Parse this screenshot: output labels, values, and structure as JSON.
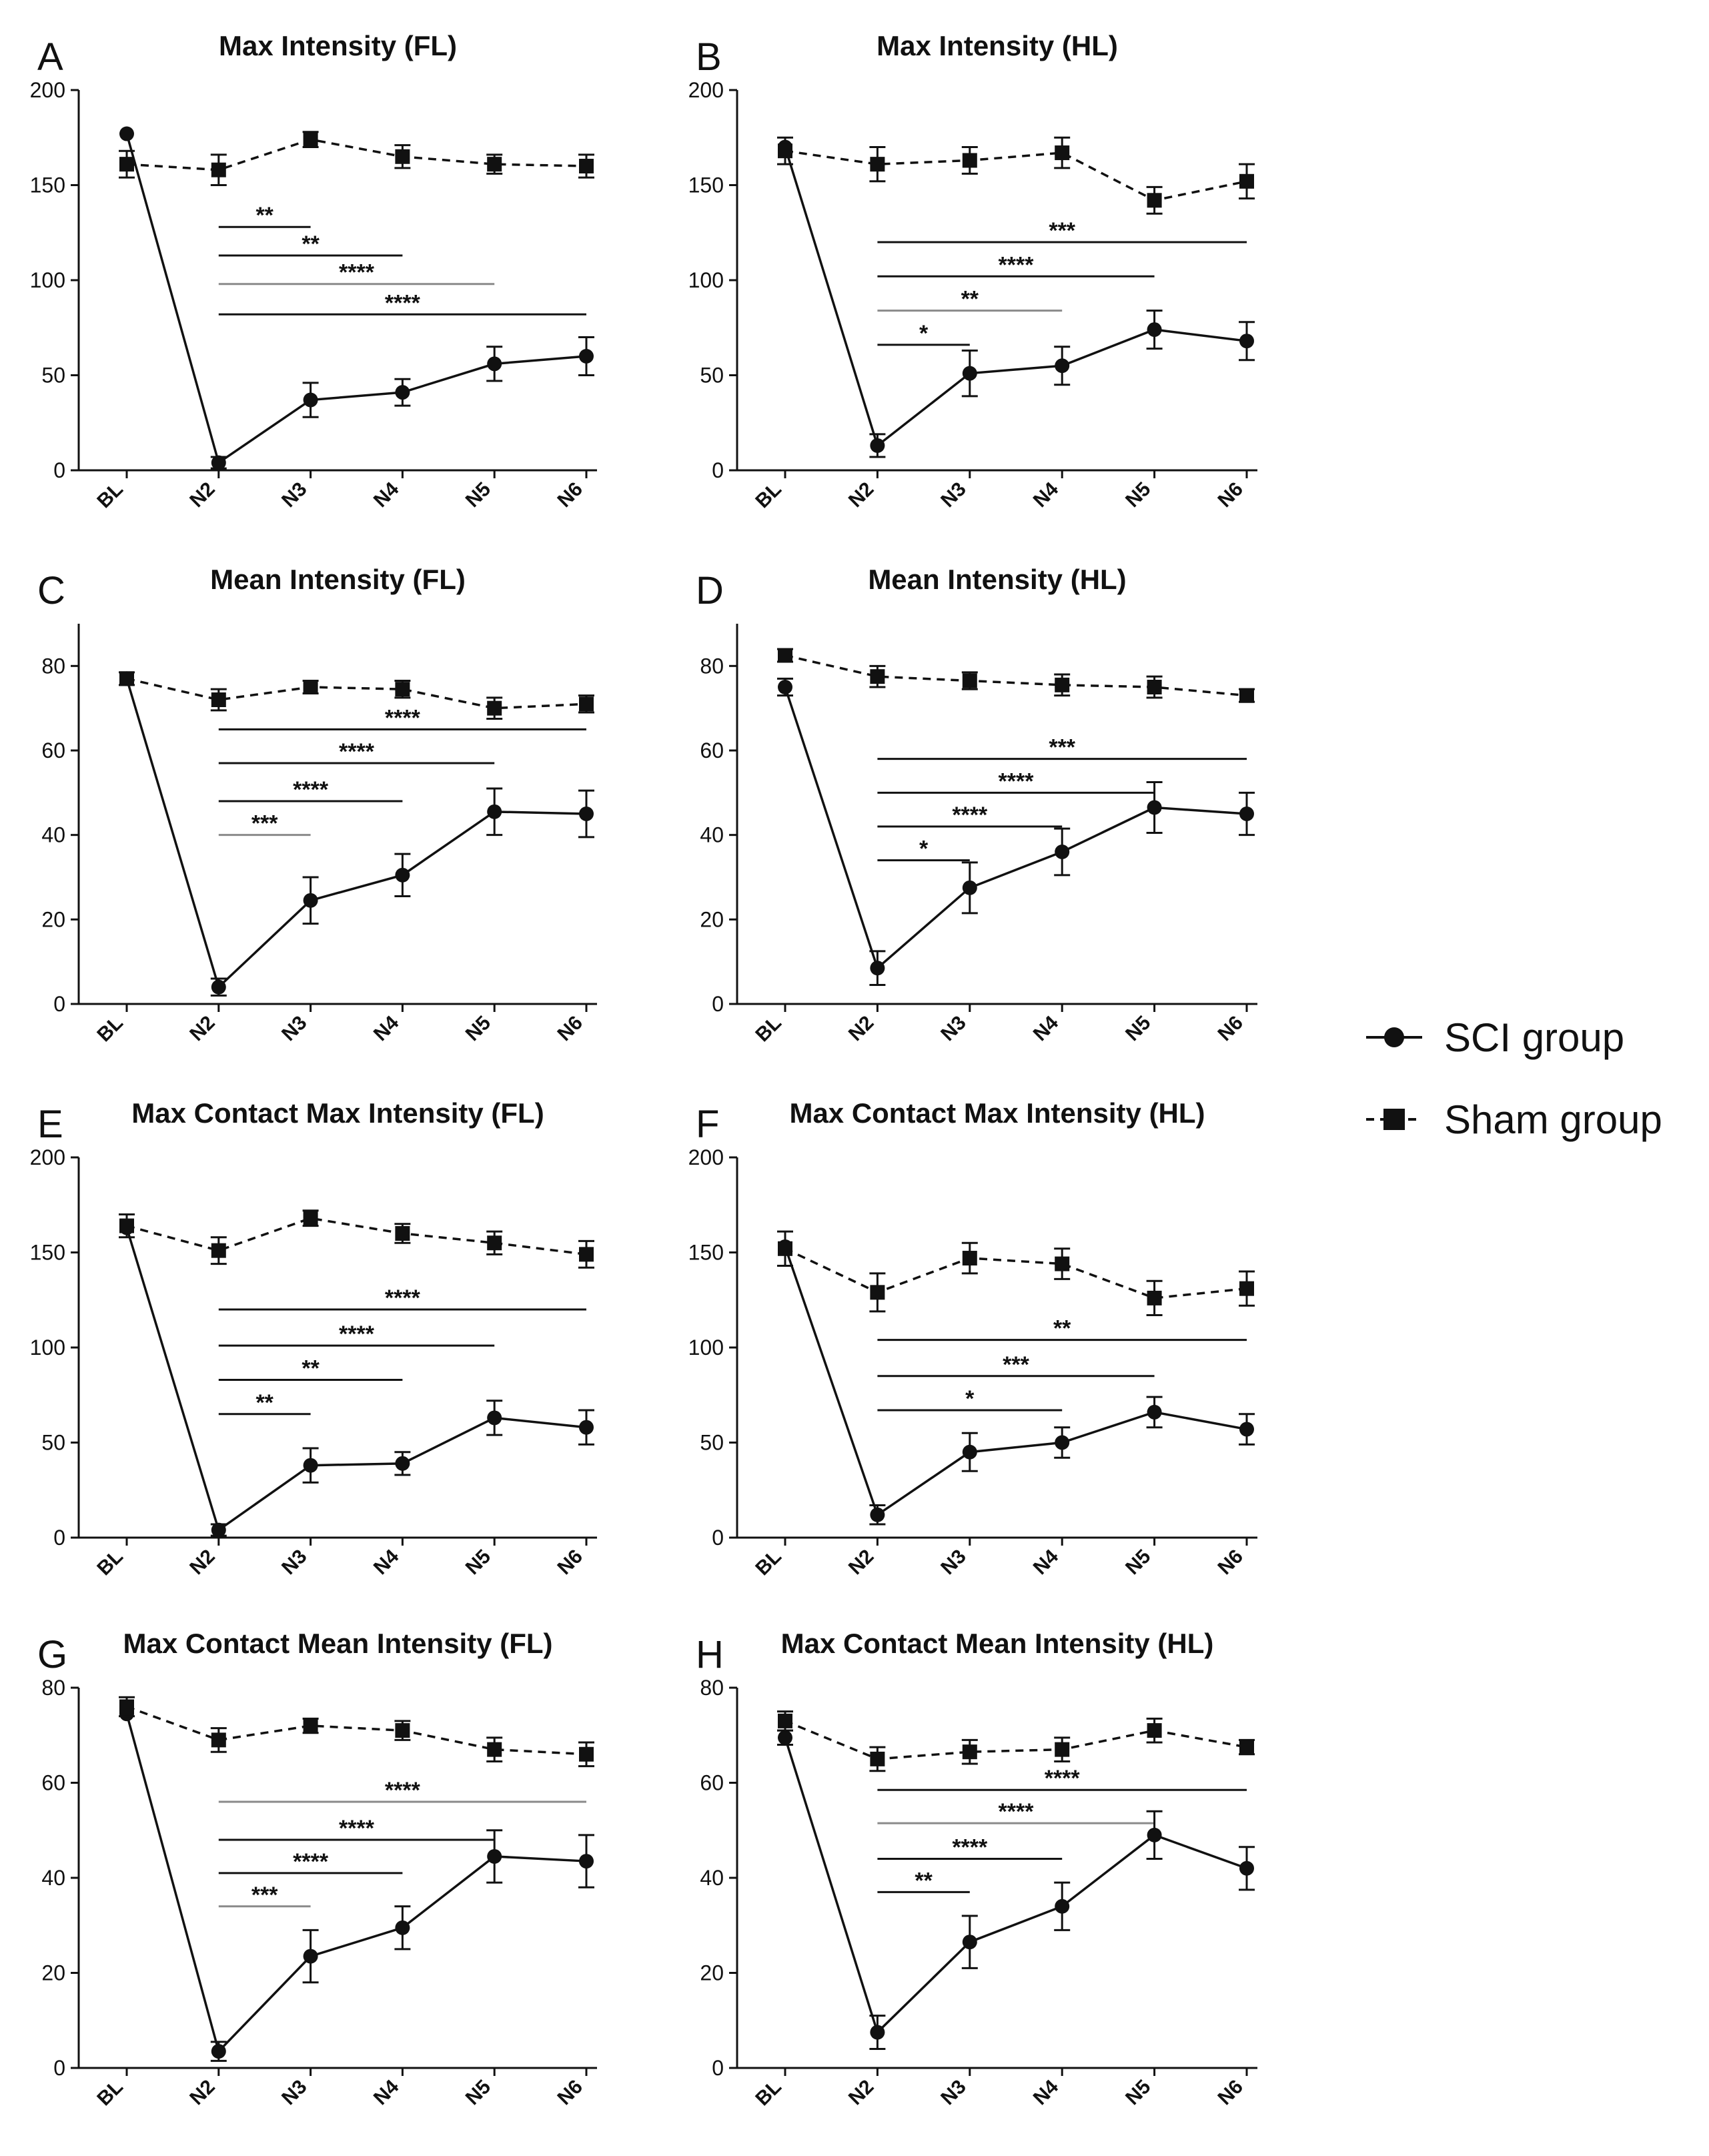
{
  "legend": {
    "sci_label": "SCI group",
    "sham_label": "Sham group"
  },
  "colors": {
    "ink": "#111111",
    "gray_bracket": "#8a8a8a"
  },
  "chart_data": [
    {
      "id": "A",
      "panel_label": "A",
      "type": "line",
      "title": "Max Intensity (FL)",
      "categories": [
        "BL",
        "N2",
        "N3",
        "N4",
        "N5",
        "N6"
      ],
      "ylim": [
        0,
        200
      ],
      "yticks": [
        0,
        50,
        100,
        150,
        200
      ],
      "series": [
        {
          "name": "SCI group",
          "style": "solid",
          "marker": "circle",
          "values": [
            177,
            4,
            37,
            41,
            56,
            60
          ],
          "err": [
            0,
            3,
            9,
            7,
            9,
            10
          ]
        },
        {
          "name": "Sham group",
          "style": "dashed",
          "marker": "square",
          "values": [
            161,
            158,
            174,
            165,
            161,
            160
          ],
          "err": [
            7,
            8,
            4,
            6,
            5,
            6
          ]
        }
      ],
      "comparisons": [
        {
          "from": "N2",
          "to": "N3",
          "y": 128,
          "label": "**",
          "color": "dark"
        },
        {
          "from": "N2",
          "to": "N4",
          "y": 113,
          "label": "**",
          "color": "dark"
        },
        {
          "from": "N2",
          "to": "N5",
          "y": 98,
          "label": "****",
          "color": "gray"
        },
        {
          "from": "N2",
          "to": "N6",
          "y": 82,
          "label": "****",
          "color": "dark"
        }
      ]
    },
    {
      "id": "B",
      "panel_label": "B",
      "type": "line",
      "title": "Max Intensity (HL)",
      "categories": [
        "BL",
        "N2",
        "N3",
        "N4",
        "N5",
        "N6"
      ],
      "ylim": [
        0,
        200
      ],
      "yticks": [
        0,
        50,
        100,
        150,
        200
      ],
      "series": [
        {
          "name": "SCI group",
          "style": "solid",
          "marker": "circle",
          "values": [
            170,
            13,
            51,
            55,
            74,
            68
          ],
          "err": [
            0,
            6,
            12,
            10,
            10,
            10
          ]
        },
        {
          "name": "Sham group",
          "style": "dashed",
          "marker": "square",
          "values": [
            168,
            161,
            163,
            167,
            142,
            152
          ],
          "err": [
            7,
            9,
            7,
            8,
            7,
            9
          ]
        }
      ],
      "comparisons": [
        {
          "from": "N2",
          "to": "N6",
          "y": 120,
          "label": "***",
          "color": "dark"
        },
        {
          "from": "N2",
          "to": "N5",
          "y": 102,
          "label": "****",
          "color": "dark"
        },
        {
          "from": "N2",
          "to": "N4",
          "y": 84,
          "label": "**",
          "color": "gray"
        },
        {
          "from": "N2",
          "to": "N3",
          "y": 66,
          "label": "*",
          "color": "dark"
        }
      ]
    },
    {
      "id": "C",
      "panel_label": "C",
      "type": "line",
      "title": "Mean Intensity (FL)",
      "categories": [
        "BL",
        "N2",
        "N3",
        "N4",
        "N5",
        "N6"
      ],
      "ylim": [
        0,
        90
      ],
      "yticks": [
        0,
        20,
        40,
        60,
        80
      ],
      "series": [
        {
          "name": "SCI group",
          "style": "solid",
          "marker": "circle",
          "values": [
            77,
            4,
            24.5,
            30.5,
            45.5,
            45
          ],
          "err": [
            0,
            2,
            5.5,
            5,
            5.5,
            5.5
          ]
        },
        {
          "name": "Sham group",
          "style": "dashed",
          "marker": "square",
          "values": [
            77,
            72,
            75,
            74.5,
            70,
            71
          ],
          "err": [
            1.5,
            2.5,
            1.5,
            2,
            2.5,
            2
          ]
        }
      ],
      "comparisons": [
        {
          "from": "N2",
          "to": "N6",
          "y": 65,
          "label": "****",
          "color": "dark"
        },
        {
          "from": "N2",
          "to": "N5",
          "y": 57,
          "label": "****",
          "color": "dark"
        },
        {
          "from": "N2",
          "to": "N4",
          "y": 48,
          "label": "****",
          "color": "dark"
        },
        {
          "from": "N2",
          "to": "N3",
          "y": 40,
          "label": "***",
          "color": "gray"
        }
      ]
    },
    {
      "id": "D",
      "panel_label": "D",
      "type": "line",
      "title": "Mean Intensity (HL)",
      "categories": [
        "BL",
        "N2",
        "N3",
        "N4",
        "N5",
        "N6"
      ],
      "ylim": [
        0,
        90
      ],
      "yticks": [
        0,
        20,
        40,
        60,
        80
      ],
      "series": [
        {
          "name": "SCI group",
          "style": "solid",
          "marker": "circle",
          "values": [
            75,
            8.5,
            27.5,
            36,
            46.5,
            45
          ],
          "err": [
            2,
            4,
            6,
            5.5,
            6,
            5
          ]
        },
        {
          "name": "Sham group",
          "style": "dashed",
          "marker": "square",
          "values": [
            82.5,
            77.5,
            76.5,
            75.5,
            75,
            73
          ],
          "err": [
            1.5,
            2.5,
            2,
            2.5,
            2.5,
            1.5
          ]
        }
      ],
      "comparisons": [
        {
          "from": "N2",
          "to": "N6",
          "y": 58,
          "label": "***",
          "color": "dark"
        },
        {
          "from": "N2",
          "to": "N5",
          "y": 50,
          "label": "****",
          "color": "dark"
        },
        {
          "from": "N2",
          "to": "N4",
          "y": 42,
          "label": "****",
          "color": "dark"
        },
        {
          "from": "N2",
          "to": "N3",
          "y": 34,
          "label": "*",
          "color": "dark"
        }
      ]
    },
    {
      "id": "E",
      "panel_label": "E",
      "type": "line",
      "title": "Max Contact Max Intensity (FL)",
      "categories": [
        "BL",
        "N2",
        "N3",
        "N4",
        "N5",
        "N6"
      ],
      "ylim": [
        0,
        200
      ],
      "yticks": [
        0,
        50,
        100,
        150,
        200
      ],
      "series": [
        {
          "name": "SCI group",
          "style": "solid",
          "marker": "circle",
          "values": [
            163,
            4,
            38,
            39,
            63,
            58
          ],
          "err": [
            0,
            3,
            9,
            6,
            9,
            9
          ]
        },
        {
          "name": "Sham group",
          "style": "dashed",
          "marker": "square",
          "values": [
            164,
            151,
            168,
            160,
            155,
            149
          ],
          "err": [
            6,
            7,
            4,
            5,
            6,
            7
          ]
        }
      ],
      "comparisons": [
        {
          "from": "N2",
          "to": "N6",
          "y": 120,
          "label": "****",
          "color": "dark"
        },
        {
          "from": "N2",
          "to": "N5",
          "y": 101,
          "label": "****",
          "color": "dark"
        },
        {
          "from": "N2",
          "to": "N4",
          "y": 83,
          "label": "**",
          "color": "dark"
        },
        {
          "from": "N2",
          "to": "N3",
          "y": 65,
          "label": "**",
          "color": "dark"
        }
      ]
    },
    {
      "id": "F",
      "panel_label": "F",
      "type": "line",
      "title": "Max Contact Max Intensity (HL)",
      "categories": [
        "BL",
        "N2",
        "N3",
        "N4",
        "N5",
        "N6"
      ],
      "ylim": [
        0,
        200
      ],
      "yticks": [
        0,
        50,
        100,
        150,
        200
      ],
      "series": [
        {
          "name": "SCI group",
          "style": "solid",
          "marker": "circle",
          "values": [
            153,
            12,
            45,
            50,
            66,
            57
          ],
          "err": [
            0,
            5,
            10,
            8,
            8,
            8
          ]
        },
        {
          "name": "Sham group",
          "style": "dashed",
          "marker": "square",
          "values": [
            152,
            129,
            147,
            144,
            126,
            131
          ],
          "err": [
            9,
            10,
            8,
            8,
            9,
            9
          ]
        }
      ],
      "comparisons": [
        {
          "from": "N2",
          "to": "N6",
          "y": 104,
          "label": "**",
          "color": "dark"
        },
        {
          "from": "N2",
          "to": "N5",
          "y": 85,
          "label": "***",
          "color": "dark"
        },
        {
          "from": "N2",
          "to": "N4",
          "y": 67,
          "label": "*",
          "color": "dark"
        }
      ]
    },
    {
      "id": "G",
      "panel_label": "G",
      "type": "line",
      "title": "Max Contact Mean Intensity (FL)",
      "categories": [
        "BL",
        "N2",
        "N3",
        "N4",
        "N5",
        "N6"
      ],
      "ylim": [
        0,
        80
      ],
      "yticks": [
        0,
        20,
        40,
        60,
        80
      ],
      "series": [
        {
          "name": "SCI group",
          "style": "solid",
          "marker": "circle",
          "values": [
            74.5,
            3.5,
            23.5,
            29.5,
            44.5,
            43.5
          ],
          "err": [
            0,
            2,
            5.5,
            4.5,
            5.5,
            5.5
          ]
        },
        {
          "name": "Sham group",
          "style": "dashed",
          "marker": "square",
          "values": [
            76,
            69,
            72,
            71,
            67,
            66
          ],
          "err": [
            2,
            2.5,
            1.5,
            2,
            2.5,
            2.5
          ]
        }
      ],
      "comparisons": [
        {
          "from": "N2",
          "to": "N6",
          "y": 56,
          "label": "****",
          "color": "gray"
        },
        {
          "from": "N2",
          "to": "N5",
          "y": 48,
          "label": "****",
          "color": "dark"
        },
        {
          "from": "N2",
          "to": "N4",
          "y": 41,
          "label": "****",
          "color": "dark"
        },
        {
          "from": "N2",
          "to": "N3",
          "y": 34,
          "label": "***",
          "color": "gray"
        }
      ]
    },
    {
      "id": "H",
      "panel_label": "H",
      "type": "line",
      "title": "Max Contact Mean Intensity (HL)",
      "categories": [
        "BL",
        "N2",
        "N3",
        "N4",
        "N5",
        "N6"
      ],
      "ylim": [
        0,
        80
      ],
      "yticks": [
        0,
        20,
        40,
        60,
        80
      ],
      "series": [
        {
          "name": "SCI group",
          "style": "solid",
          "marker": "circle",
          "values": [
            69.5,
            7.5,
            26.5,
            34,
            49,
            42
          ],
          "err": [
            1.5,
            3.5,
            5.5,
            5,
            5,
            4.5
          ]
        },
        {
          "name": "Sham group",
          "style": "dashed",
          "marker": "square",
          "values": [
            73,
            65,
            66.5,
            67,
            71,
            67.5
          ],
          "err": [
            2,
            2.5,
            2.5,
            2.5,
            2.5,
            1.5
          ]
        }
      ],
      "comparisons": [
        {
          "from": "N2",
          "to": "N6",
          "y": 58.5,
          "label": "****",
          "color": "dark"
        },
        {
          "from": "N2",
          "to": "N5",
          "y": 51.5,
          "label": "****",
          "color": "gray"
        },
        {
          "from": "N2",
          "to": "N4",
          "y": 44,
          "label": "****",
          "color": "dark"
        },
        {
          "from": "N2",
          "to": "N3",
          "y": 37,
          "label": "**",
          "color": "dark"
        }
      ]
    }
  ]
}
